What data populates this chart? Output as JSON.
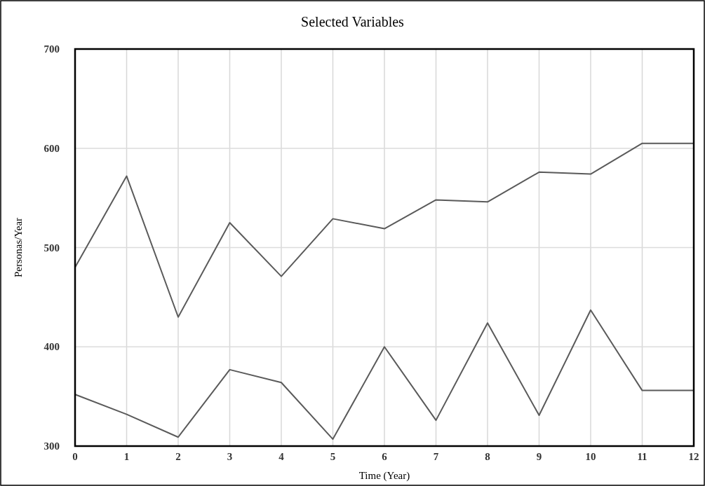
{
  "chart_data": {
    "type": "line",
    "title": "Selected Variables",
    "xlabel": "Time (Year)",
    "ylabel": "Personas/Year",
    "x": [
      0,
      1,
      2,
      3,
      4,
      5,
      6,
      7,
      8,
      9,
      10,
      11,
      12
    ],
    "series": [
      {
        "color": "#5a5a5a",
        "values": [
          480,
          572,
          430,
          525,
          471,
          529,
          519,
          548,
          546,
          576,
          574,
          605,
          605
        ]
      },
      {
        "color": "#5a5a5a",
        "values": [
          352,
          332,
          309,
          377,
          364,
          307,
          400,
          326,
          424,
          331,
          437,
          356,
          356
        ]
      }
    ],
    "xlim": [
      0,
      12
    ],
    "xticks": [
      0,
      1,
      2,
      3,
      4,
      5,
      6,
      7,
      8,
      9,
      10,
      11,
      12
    ],
    "ylim": [
      300,
      700
    ],
    "yticks": [
      300,
      400,
      500,
      600,
      700
    ],
    "grid": true,
    "marker": "none",
    "line_style": "solid"
  }
}
